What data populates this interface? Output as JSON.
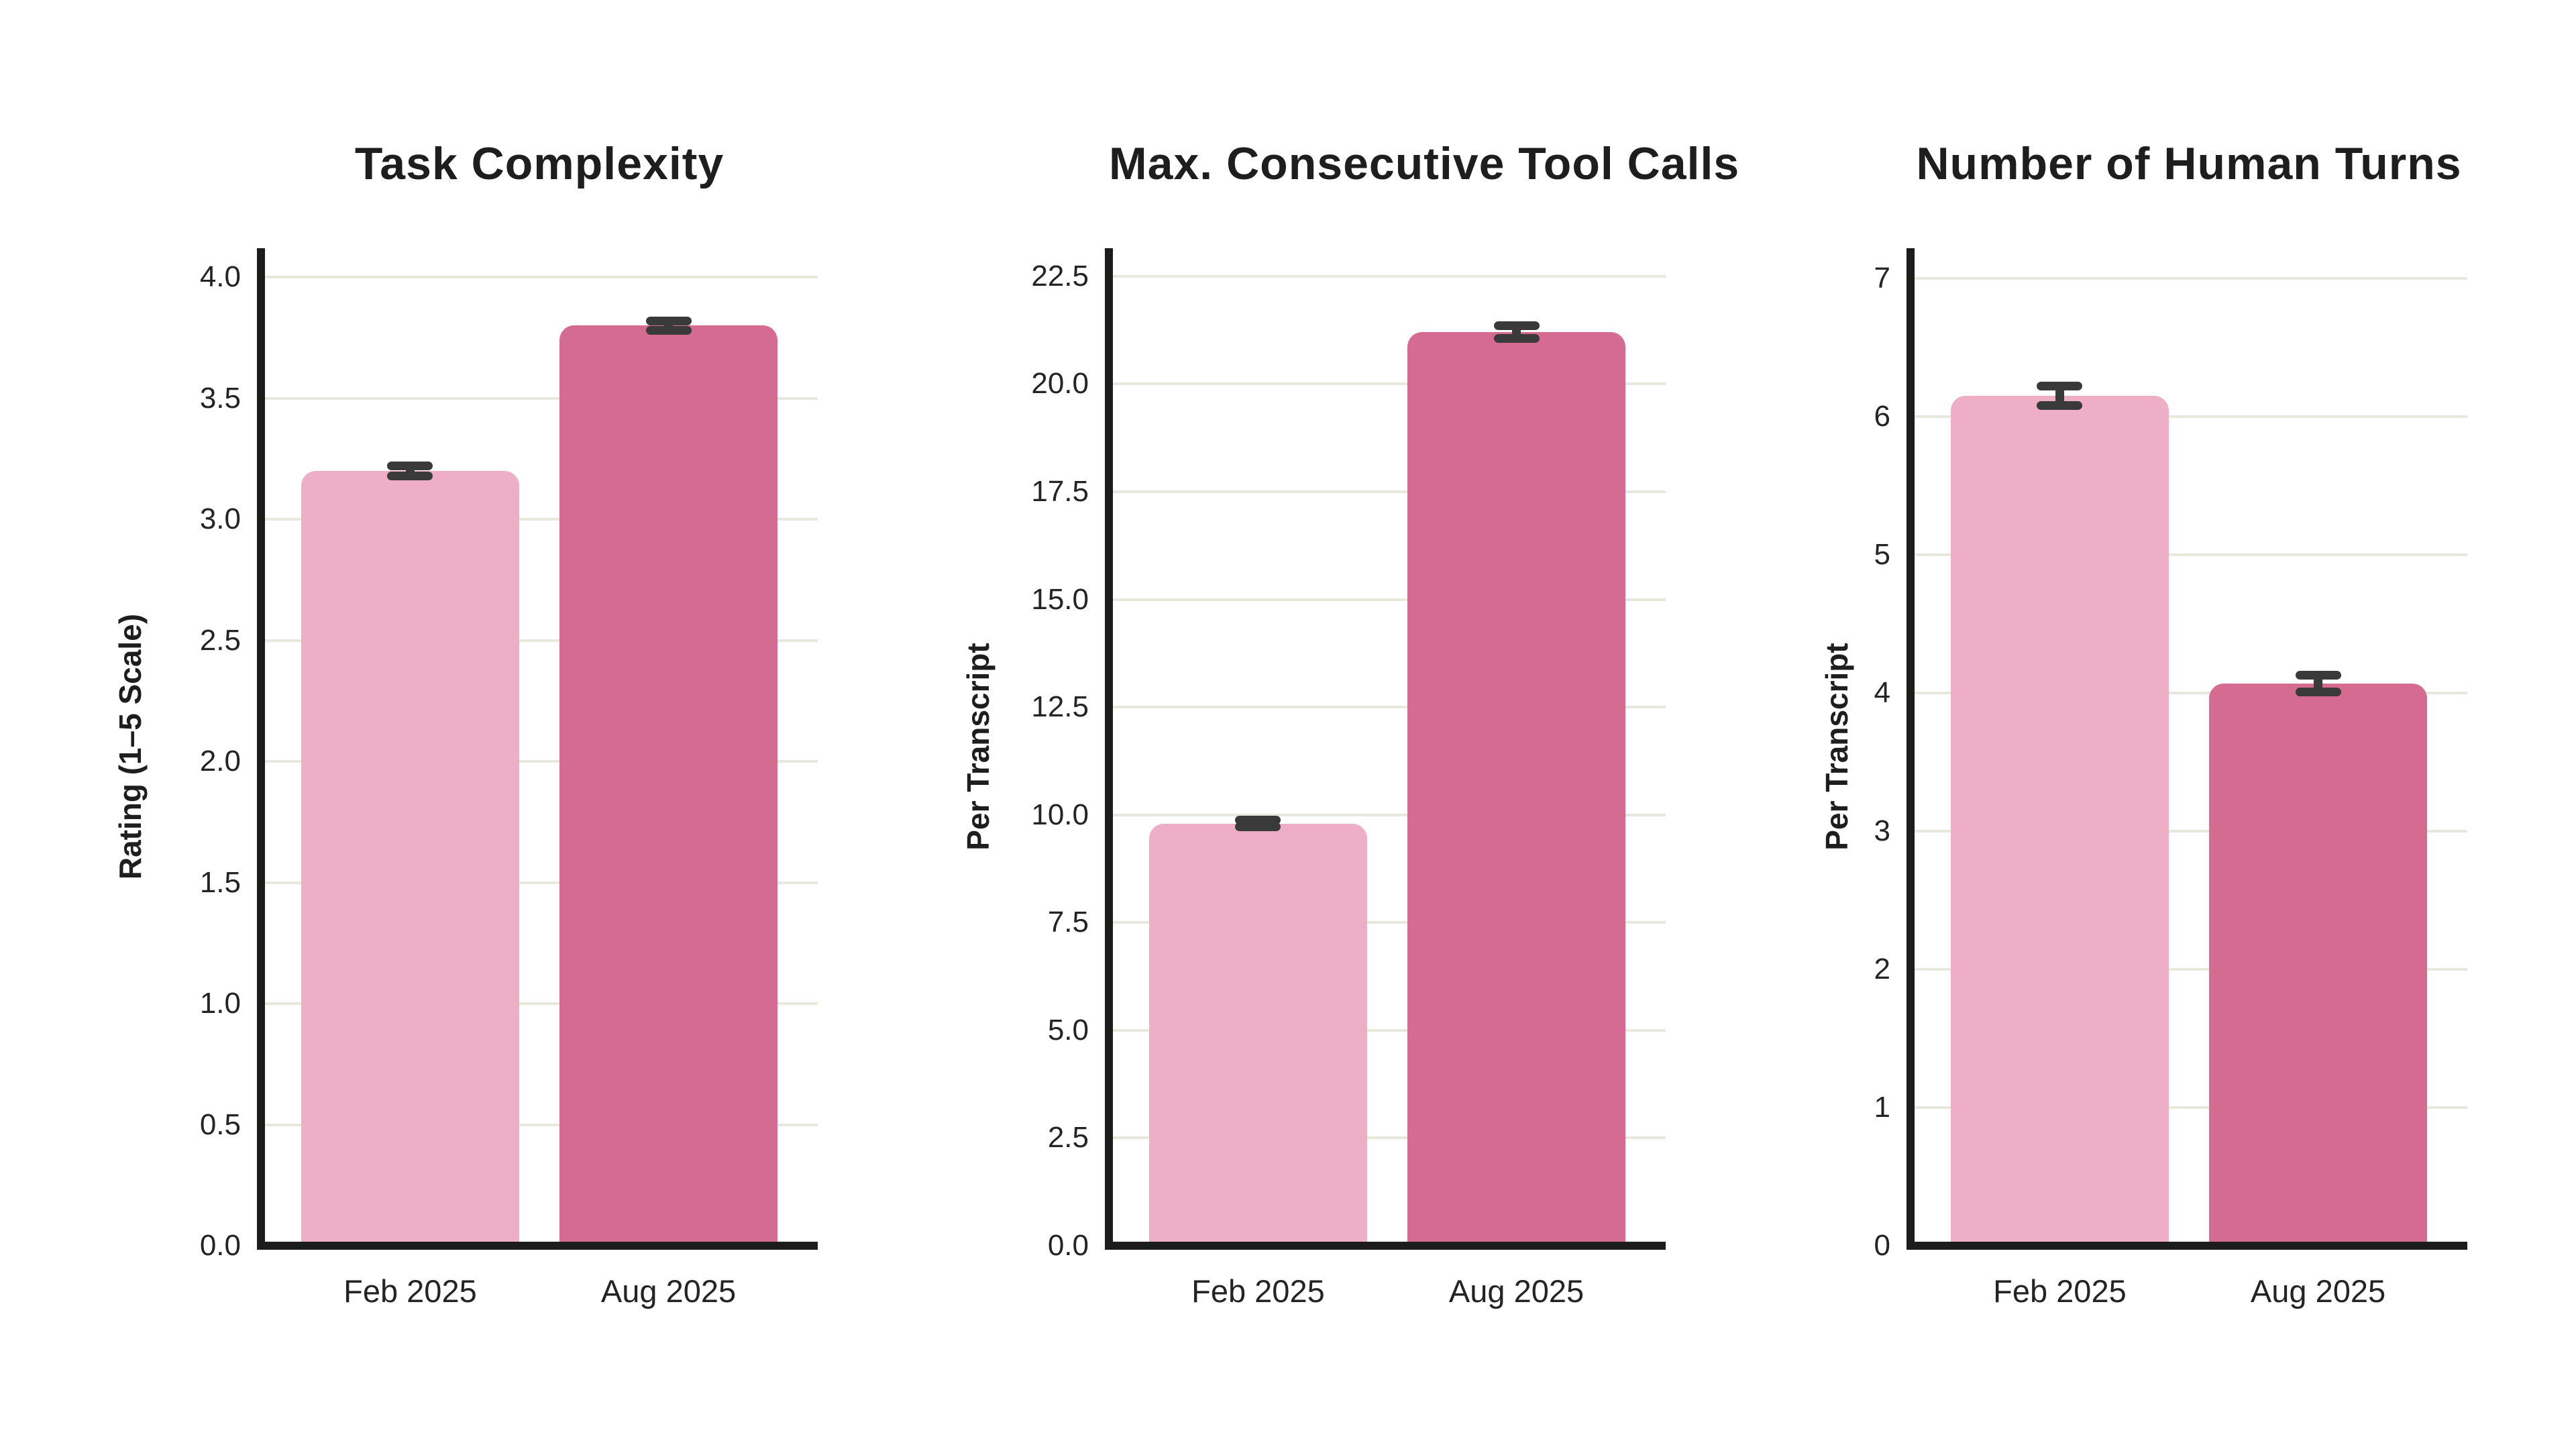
{
  "figure": {
    "background": "#ffffff"
  },
  "colors": {
    "bar_feb_2025": "#eeafc6",
    "bar_aug_2025": "#d56b90",
    "error_bar": "#3a3a3a",
    "gridline": "#e9e8dc",
    "axis": "#1c1c1c",
    "text": "#242424",
    "title_text": "#1e1e1e"
  },
  "chart_data": [
    {
      "type": "bar",
      "title": "Task Complexity",
      "ylabel": "Rating (1–5 Scale)",
      "xlabel": "",
      "categories": [
        "Feb 2025",
        "Aug 2025"
      ],
      "values": [
        3.2,
        3.8
      ],
      "errors": [
        0.02,
        0.02
      ],
      "ylim": [
        0,
        4.12
      ],
      "yticks": [
        0,
        0.5,
        1,
        1.5,
        2,
        2.5,
        3,
        3.5,
        4
      ],
      "ytick_labels": [
        "0.0",
        "0.5",
        "1.0",
        "1.5",
        "2.0",
        "2.5",
        "3.0",
        "3.5",
        "4.0"
      ],
      "grid": true,
      "legend": false
    },
    {
      "type": "bar",
      "title": "Max. Consecutive Tool Calls",
      "ylabel": "Per Transcript",
      "xlabel": "",
      "categories": [
        "Feb 2025",
        "Aug 2025"
      ],
      "values": [
        9.8,
        21.2
      ],
      "errors": [
        0.08,
        0.15
      ],
      "ylim": [
        0,
        23.15
      ],
      "yticks": [
        0,
        2.5,
        5,
        7.5,
        10,
        12.5,
        15,
        17.5,
        20,
        22.5
      ],
      "ytick_labels": [
        "0.0",
        "2.5",
        "5.0",
        "7.5",
        "10.0",
        "12.5",
        "15.0",
        "17.5",
        "20.0",
        "22.5"
      ],
      "grid": true,
      "legend": false
    },
    {
      "type": "bar",
      "title": "Number of Human Turns",
      "ylabel": "Per Transcript",
      "xlabel": "",
      "categories": [
        "Feb 2025",
        "Aug 2025"
      ],
      "values": [
        6.15,
        4.07
      ],
      "errors": [
        0.07,
        0.06
      ],
      "ylim": [
        0,
        7.22
      ],
      "yticks": [
        0,
        1,
        2,
        3,
        4,
        5,
        6,
        7
      ],
      "ytick_labels": [
        "0",
        "1",
        "2",
        "3",
        "4",
        "5",
        "6",
        "7"
      ],
      "grid": true,
      "legend": false
    }
  ]
}
